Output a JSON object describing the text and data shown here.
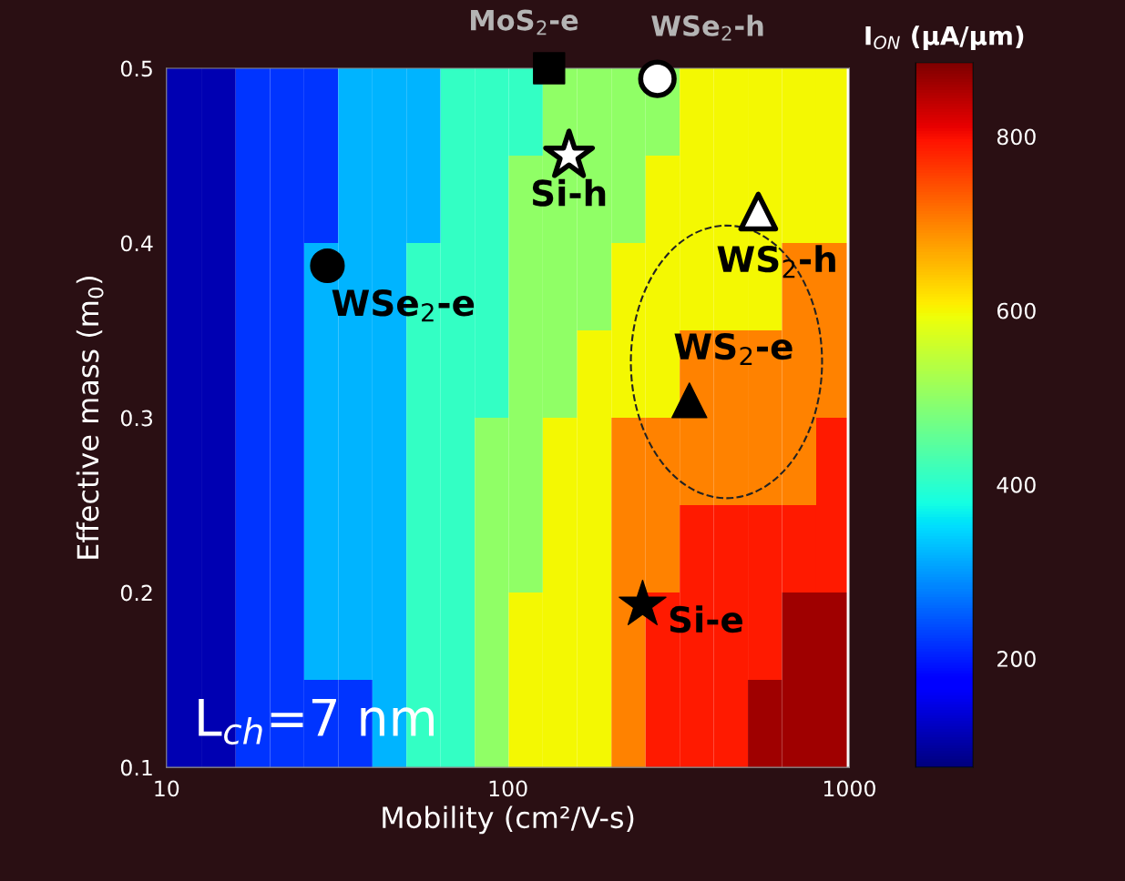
{
  "chart_data": {
    "type": "heatmap",
    "xlabel": "Mobility (cm²/V-s)",
    "ylabel": "Effective mass (m$_{0}$)",
    "clabel": "I$_{ON}$ (μA/μm)",
    "x": [
      11.2,
      14.1,
      17.8,
      22.4,
      28.2,
      35.5,
      44.7,
      56.2,
      70.8,
      89.1,
      112,
      141,
      178,
      224,
      282,
      355,
      447,
      562,
      708,
      891
    ],
    "y": [
      0.475,
      0.425,
      0.375,
      0.325,
      0.275,
      0.225,
      0.175,
      0.125
    ],
    "cells": [
      [
        110,
        110,
        220,
        220,
        220,
        320,
        320,
        320,
        410,
        410,
        410,
        500,
        500,
        500,
        500,
        600,
        600,
        600,
        600,
        600
      ],
      [
        110,
        110,
        220,
        220,
        220,
        320,
        320,
        320,
        410,
        410,
        500,
        500,
        500,
        500,
        600,
        600,
        600,
        600,
        600,
        600
      ],
      [
        110,
        110,
        220,
        220,
        320,
        320,
        320,
        410,
        410,
        410,
        500,
        500,
        500,
        600,
        600,
        600,
        600,
        600,
        700,
        700
      ],
      [
        110,
        110,
        220,
        220,
        320,
        320,
        320,
        410,
        410,
        410,
        500,
        500,
        600,
        600,
        600,
        700,
        700,
        700,
        700,
        700
      ],
      [
        110,
        110,
        220,
        220,
        320,
        320,
        320,
        410,
        410,
        500,
        500,
        600,
        600,
        700,
        700,
        700,
        700,
        700,
        700,
        790
      ],
      [
        110,
        110,
        220,
        220,
        320,
        320,
        320,
        410,
        410,
        500,
        500,
        600,
        600,
        700,
        700,
        790,
        790,
        790,
        790,
        790
      ],
      [
        110,
        110,
        220,
        220,
        320,
        320,
        320,
        410,
        410,
        500,
        600,
        600,
        600,
        700,
        790,
        790,
        790,
        790,
        860,
        860
      ],
      [
        110,
        110,
        220,
        220,
        220,
        220,
        320,
        410,
        410,
        500,
        600,
        600,
        600,
        700,
        790,
        790,
        790,
        860,
        860,
        860
      ]
    ],
    "clim": [
      75,
      885
    ],
    "cticks": [
      200,
      400,
      600,
      800
    ],
    "log": "x",
    "xlim": [
      10,
      1000
    ],
    "xticks": [
      10,
      100,
      1000
    ],
    "ylim": [
      0.1,
      0.5
    ],
    "yticks": [
      0.1,
      0.2,
      0.3,
      0.4,
      0.5
    ],
    "series": [
      {
        "type": "scatter",
        "x": [
          132
        ],
        "values": [
          0.5
        ],
        "color": "#000000",
        "marker": "square"
      },
      {
        "type": "scatter",
        "x": [
          274
        ],
        "values": [
          0.494
        ],
        "color": "#ffffff",
        "marker": "circle"
      },
      {
        "type": "scatter",
        "x": [
          151
        ],
        "values": [
          0.45
        ],
        "color": "#ffffff",
        "marker": "star"
      },
      {
        "type": "scatter",
        "x": [
          541
        ],
        "values": [
          0.418
        ],
        "color": "#ffffff",
        "marker": "triangle"
      },
      {
        "type": "scatter",
        "x": [
          29.6
        ],
        "values": [
          0.387
        ],
        "color": "#000000",
        "marker": "circle"
      },
      {
        "type": "scatter",
        "x": [
          340
        ],
        "values": [
          0.31
        ],
        "color": "#000000",
        "marker": "triangle"
      },
      {
        "type": "scatter",
        "x": [
          248
        ],
        "values": [
          0.193
        ],
        "color": "#000000",
        "marker": "star"
      }
    ],
    "annotations": [
      {
        "text": "MoS$_{2}$-e",
        "x": 132,
        "y": 0.5
      },
      {
        "text": "WSe$_{2}$-h",
        "x": 274,
        "y": 0.494
      },
      {
        "text": "Si-h",
        "x": 151,
        "y": 0.45
      },
      {
        "text": "WS$_{2}$-h",
        "x": 541,
        "y": 0.418
      },
      {
        "text": "WSe$_{2}$-e",
        "x": 29.6,
        "y": 0.387
      },
      {
        "text": "WS$_{2}$-e",
        "x": 340,
        "y": 0.31
      },
      {
        "text": "Si-e",
        "x": 248,
        "y": 0.193
      },
      "L$_{ch}$=7 nm"
    ]
  }
}
